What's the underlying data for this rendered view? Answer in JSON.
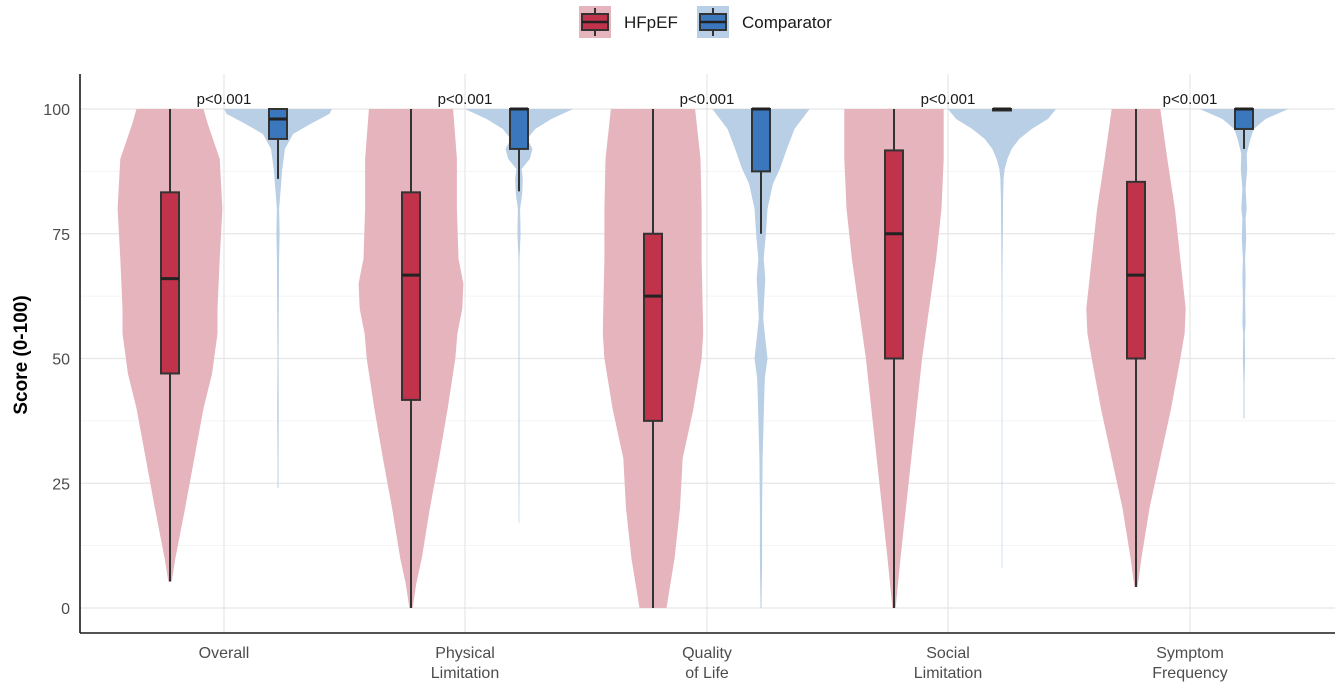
{
  "chart_data": {
    "type": "violin",
    "title": "",
    "xlabel": "",
    "ylabel": "Score (0-100)",
    "ylim": [
      0,
      100
    ],
    "yticks": [
      0,
      25,
      50,
      75,
      100
    ],
    "grid": true,
    "legend_position": "top-center",
    "categories": [
      {
        "lines": [
          "Overall"
        ]
      },
      {
        "lines": [
          "Physical",
          "Limitation"
        ]
      },
      {
        "lines": [
          "Quality",
          "of Life"
        ]
      },
      {
        "lines": [
          "Social",
          "Limitation"
        ]
      },
      {
        "lines": [
          "Symptom",
          "Frequency"
        ]
      }
    ],
    "annotations": [
      "p<0.001",
      "p<0.001",
      "p<0.001",
      "p<0.001",
      "p<0.001"
    ],
    "series": [
      {
        "name": "HFpEF",
        "color": "#c0334a",
        "violin_color": "#e5b4bc",
        "box": [
          {
            "min": 5.3,
            "q1": 47,
            "median": 66,
            "q3": 83.3,
            "max": 100
          },
          {
            "min": 0,
            "q1": 41.7,
            "median": 66.7,
            "q3": 83.3,
            "max": 100
          },
          {
            "min": 0,
            "q1": 37.5,
            "median": 62.5,
            "q3": 75,
            "max": 100
          },
          {
            "min": 0,
            "q1": 50,
            "median": 75,
            "q3": 91.7,
            "max": 100
          },
          {
            "min": 4.2,
            "q1": 50,
            "median": 66.7,
            "q3": 85.4,
            "max": 100
          }
        ],
        "density": [
          {
            "y": [
              5.3,
              10,
              20,
              30,
              40,
              47,
              55,
              60,
              70,
              80,
              90,
              97,
              100
            ],
            "w": [
              0.03,
              0.1,
              0.28,
              0.45,
              0.62,
              0.78,
              0.88,
              0.88,
              0.92,
              0.97,
              0.92,
              0.7,
              0.62
            ]
          },
          {
            "y": [
              0,
              5,
              10,
              20,
              30,
              40,
              50,
              55,
              60,
              65,
              70,
              80,
              90,
              100
            ],
            "w": [
              0.03,
              0.1,
              0.2,
              0.35,
              0.52,
              0.68,
              0.82,
              0.86,
              0.95,
              0.97,
              0.88,
              0.85,
              0.85,
              0.78
            ]
          },
          {
            "y": [
              0,
              10,
              20,
              30,
              40,
              50,
              55,
              60,
              70,
              80,
              90,
              100
            ],
            "w": [
              0.25,
              0.4,
              0.5,
              0.55,
              0.75,
              0.9,
              0.93,
              0.92,
              0.9,
              0.9,
              0.88,
              0.78
            ]
          },
          {
            "y": [
              0,
              10,
              20,
              30,
              40,
              50,
              60,
              70,
              80,
              90,
              100
            ],
            "w": [
              0.03,
              0.12,
              0.22,
              0.32,
              0.42,
              0.52,
              0.65,
              0.78,
              0.88,
              0.92,
              0.92
            ]
          },
          {
            "y": [
              4.2,
              10,
              20,
              30,
              40,
              50,
              55,
              60,
              70,
              80,
              90,
              100
            ],
            "w": [
              0.03,
              0.1,
              0.25,
              0.45,
              0.65,
              0.82,
              0.9,
              0.92,
              0.82,
              0.72,
              0.58,
              0.45
            ]
          }
        ]
      },
      {
        "name": "Comparator",
        "color": "#3a77bd",
        "violin_color": "#b8cfe6",
        "box": [
          {
            "min": 86,
            "q1": 94,
            "median": 98,
            "q3": 100,
            "max": 100
          },
          {
            "min": 83.5,
            "q1": 92,
            "median": 100,
            "q3": 100,
            "max": 100
          },
          {
            "min": 75,
            "q1": 87.5,
            "median": 100,
            "q3": 100,
            "max": 100
          },
          {
            "min": 100,
            "q1": 100,
            "median": 100,
            "q3": 100,
            "max": 100
          },
          {
            "min": 92,
            "q1": 96,
            "median": 100,
            "q3": 100,
            "max": 100
          }
        ],
        "density": [
          {
            "y": [
              24,
              30,
              40,
              50,
              60,
              70,
              75,
              80,
              84,
              88,
              92,
              95,
              97,
              99,
              100
            ],
            "w": [
              0.01,
              0.01,
              0.015,
              0.01,
              0.015,
              0.02,
              0.03,
              0.02,
              0.05,
              0.08,
              0.13,
              0.28,
              0.6,
              0.95,
              1.0
            ]
          },
          {
            "y": [
              17,
              30,
              40,
              50,
              60,
              70,
              75,
              80,
              83,
              86,
              88,
              90,
              92,
              94,
              96,
              98,
              100
            ],
            "w": [
              0.005,
              0.01,
              0.01,
              0.01,
              0.01,
              0.01,
              0.03,
              0.02,
              0.06,
              0.07,
              0.05,
              0.2,
              0.25,
              0.15,
              0.3,
              0.6,
              1.0
            ]
          },
          {
            "y": [
              0,
              10,
              20,
              30,
              38,
              42,
              46,
              50,
              54,
              58,
              62,
              66,
              70,
              75,
              80,
              85,
              88,
              92,
              96,
              100
            ],
            "w": [
              0.01,
              0.02,
              0.02,
              0.03,
              0.05,
              0.06,
              0.07,
              0.12,
              0.08,
              0.04,
              0.06,
              0.08,
              0.05,
              0.09,
              0.12,
              0.22,
              0.35,
              0.48,
              0.62,
              0.9
            ]
          },
          {
            "y": [
              8,
              30,
              50,
              65,
              75,
              82,
              86,
              88,
              90,
              92,
              94,
              96,
              98,
              100
            ],
            "w": [
              0.005,
              0.005,
              0.005,
              0.008,
              0.015,
              0.02,
              0.03,
              0.05,
              0.1,
              0.18,
              0.32,
              0.55,
              0.85,
              1.0
            ]
          },
          {
            "y": [
              38,
              45,
              50,
              55,
              57,
              62,
              66,
              70,
              74,
              78,
              80,
              84,
              88,
              91,
              94,
              96,
              98,
              100
            ],
            "w": [
              0.01,
              0.01,
              0.02,
              0.015,
              0.03,
              0.02,
              0.03,
              0.02,
              0.04,
              0.03,
              0.05,
              0.03,
              0.06,
              0.05,
              0.12,
              0.18,
              0.4,
              0.82
            ]
          }
        ]
      }
    ]
  }
}
